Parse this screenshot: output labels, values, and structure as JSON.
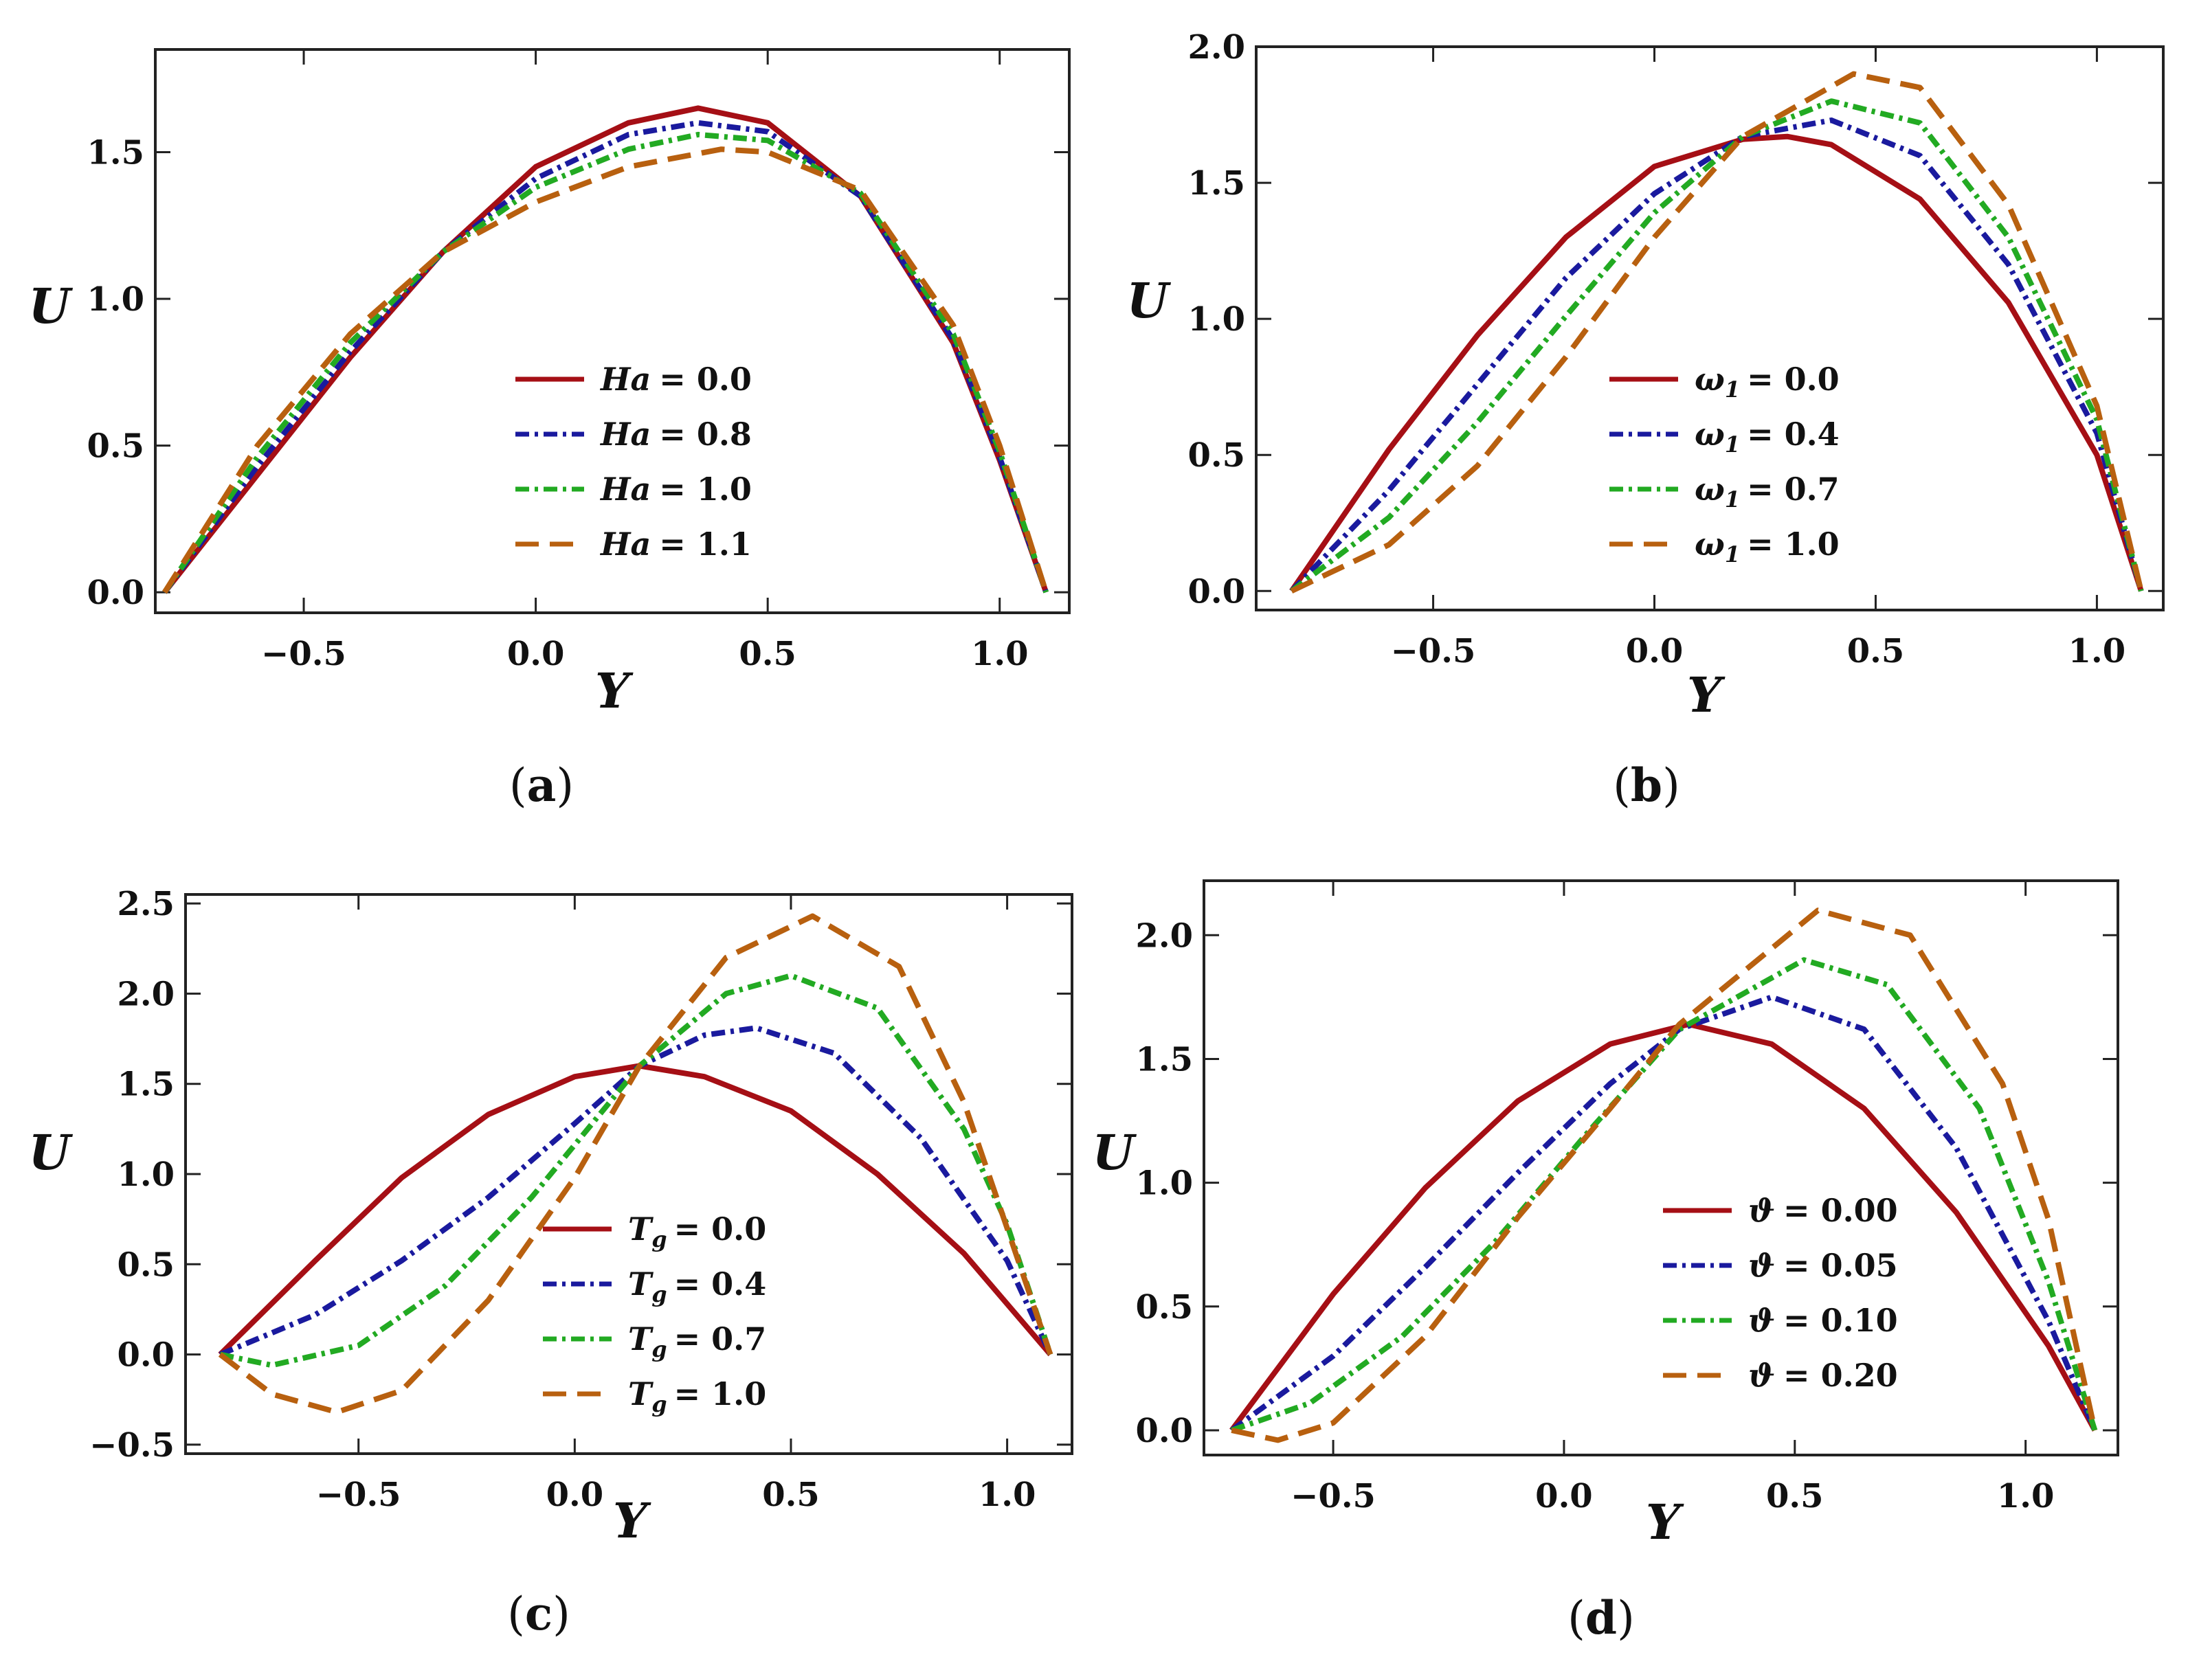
{
  "chart_data": [
    {
      "type": "line",
      "panel_label_parts": [
        "(",
        "a",
        ")"
      ],
      "xlabel": "Y",
      "ylabel": "U",
      "xlim": [
        -0.82,
        1.15
      ],
      "ylim": [
        -0.07,
        1.85
      ],
      "xticks": [
        -0.5,
        0.0,
        0.5,
        1.0
      ],
      "xtick_labels": [
        "−0.5",
        "0.0",
        "0.5",
        "1.0"
      ],
      "yticks": [
        0.0,
        0.5,
        1.0,
        1.5
      ],
      "ytick_labels": [
        "0.0",
        "0.5",
        "1.0",
        "1.5"
      ],
      "legend_position": "center-right",
      "series": [
        {
          "name": "Ha = 0.0",
          "label": {
            "sym": "Ha",
            "sub": "",
            "val": "= 0.0"
          },
          "color": "#a50f15",
          "style": "solid",
          "x": [
            -0.8,
            -0.6,
            -0.4,
            -0.2,
            0.0,
            0.2,
            0.35,
            0.5,
            0.7,
            0.9,
            1.0,
            1.1
          ],
          "y": [
            0.0,
            0.4,
            0.8,
            1.16,
            1.45,
            1.6,
            1.65,
            1.6,
            1.35,
            0.85,
            0.45,
            0.0
          ]
        },
        {
          "name": "Ha = 0.8",
          "label": {
            "sym": "Ha",
            "sub": "",
            "val": "= 0.8"
          },
          "color": "#1a1a9e",
          "style": "dashdot",
          "x": [
            -0.8,
            -0.6,
            -0.4,
            -0.2,
            0.0,
            0.2,
            0.35,
            0.5,
            0.7,
            0.9,
            1.0,
            1.1
          ],
          "y": [
            0.0,
            0.43,
            0.82,
            1.16,
            1.41,
            1.56,
            1.6,
            1.57,
            1.35,
            0.86,
            0.46,
            0.0
          ]
        },
        {
          "name": "Ha = 1.0",
          "label": {
            "sym": "Ha",
            "sub": "",
            "val": "= 1.0"
          },
          "color": "#22aa22",
          "style": "dashdot",
          "x": [
            -0.8,
            -0.6,
            -0.4,
            -0.2,
            0.0,
            0.2,
            0.35,
            0.5,
            0.7,
            0.9,
            1.0,
            1.1
          ],
          "y": [
            0.0,
            0.46,
            0.85,
            1.16,
            1.38,
            1.51,
            1.56,
            1.54,
            1.36,
            0.88,
            0.48,
            0.0
          ]
        },
        {
          "name": "Ha = 1.1",
          "label": {
            "sym": "Ha",
            "sub": "",
            "val": "= 1.1"
          },
          "color": "#b8600f",
          "style": "dashed",
          "x": [
            -0.8,
            -0.6,
            -0.4,
            -0.2,
            0.0,
            0.2,
            0.4,
            0.5,
            0.7,
            0.9,
            1.0,
            1.1
          ],
          "y": [
            0.0,
            0.5,
            0.88,
            1.16,
            1.33,
            1.45,
            1.51,
            1.5,
            1.37,
            0.91,
            0.5,
            0.0
          ]
        }
      ]
    },
    {
      "type": "line",
      "panel_label_parts": [
        "(",
        "b",
        ")"
      ],
      "xlabel": "Y",
      "ylabel": "U",
      "xlim": [
        -0.9,
        1.15
      ],
      "ylim": [
        -0.07,
        2.0
      ],
      "xticks": [
        -0.5,
        0.0,
        0.5,
        1.0
      ],
      "xtick_labels": [
        "−0.5",
        "0.0",
        "0.5",
        "1.0"
      ],
      "yticks": [
        0.0,
        0.5,
        1.0,
        1.5,
        2.0
      ],
      "ytick_labels": [
        "0.0",
        "0.5",
        "1.0",
        "1.5",
        "2.0"
      ],
      "legend_position": "center",
      "series": [
        {
          "name": "ω1 = 0.0",
          "label": {
            "sym": "ω",
            "sub": "1",
            "val": "= 0.0"
          },
          "color": "#a50f15",
          "style": "solid",
          "x": [
            -0.82,
            -0.6,
            -0.4,
            -0.2,
            0.0,
            0.2,
            0.3,
            0.4,
            0.6,
            0.8,
            1.0,
            1.1
          ],
          "y": [
            0.0,
            0.52,
            0.94,
            1.3,
            1.56,
            1.66,
            1.67,
            1.64,
            1.44,
            1.06,
            0.5,
            0.0
          ]
        },
        {
          "name": "ω1 = 0.4",
          "label": {
            "sym": "ω",
            "sub": "1",
            "val": "= 0.4"
          },
          "color": "#1a1a9e",
          "style": "dashdot",
          "x": [
            -0.82,
            -0.6,
            -0.4,
            -0.2,
            0.0,
            0.2,
            0.4,
            0.6,
            0.8,
            1.0,
            1.1
          ],
          "y": [
            0.0,
            0.37,
            0.76,
            1.15,
            1.46,
            1.67,
            1.73,
            1.6,
            1.2,
            0.58,
            0.0
          ]
        },
        {
          "name": "ω1 = 0.7",
          "label": {
            "sym": "ω",
            "sub": "1",
            "val": "= 0.7"
          },
          "color": "#22aa22",
          "style": "dashdot",
          "x": [
            -0.82,
            -0.6,
            -0.4,
            -0.2,
            0.0,
            0.2,
            0.4,
            0.6,
            0.8,
            1.0,
            1.1
          ],
          "y": [
            0.0,
            0.27,
            0.62,
            1.01,
            1.39,
            1.67,
            1.8,
            1.72,
            1.3,
            0.63,
            0.0
          ]
        },
        {
          "name": "ω1 = 1.0",
          "label": {
            "sym": "ω",
            "sub": "1",
            "val": "= 1.0"
          },
          "color": "#b8600f",
          "style": "dashed",
          "x": [
            -0.82,
            -0.6,
            -0.4,
            -0.2,
            0.0,
            0.2,
            0.45,
            0.6,
            0.8,
            1.0,
            1.1
          ],
          "y": [
            0.0,
            0.17,
            0.46,
            0.86,
            1.3,
            1.67,
            1.9,
            1.85,
            1.42,
            0.68,
            0.0
          ]
        }
      ]
    },
    {
      "type": "line",
      "panel_label_parts": [
        "(",
        "c",
        ")"
      ],
      "xlabel": "Y",
      "ylabel": "U",
      "xlim": [
        -0.9,
        1.15
      ],
      "ylim": [
        -0.55,
        2.55
      ],
      "xticks": [
        -0.5,
        0.0,
        0.5,
        1.0
      ],
      "xtick_labels": [
        "−0.5",
        "0.0",
        "0.5",
        "1.0"
      ],
      "yticks": [
        -0.5,
        0.0,
        0.5,
        1.0,
        1.5,
        2.0,
        2.5
      ],
      "ytick_labels": [
        "−0.5",
        "0.0",
        "0.5",
        "1.0",
        "1.5",
        "2.0",
        "2.5"
      ],
      "legend_position": "center",
      "series": [
        {
          "name": "Tg = 0.0",
          "label": {
            "sym": "T",
            "sub": "g",
            "val": "= 0.0"
          },
          "color": "#a50f15",
          "style": "solid",
          "x": [
            -0.82,
            -0.6,
            -0.4,
            -0.2,
            0.0,
            0.15,
            0.3,
            0.5,
            0.7,
            0.9,
            1.1
          ],
          "y": [
            0.0,
            0.52,
            0.98,
            1.33,
            1.54,
            1.6,
            1.54,
            1.35,
            1.0,
            0.56,
            0.0
          ]
        },
        {
          "name": "Tg = 0.4",
          "label": {
            "sym": "T",
            "sub": "g",
            "val": "= 0.4"
          },
          "color": "#1a1a9e",
          "style": "dashdot",
          "x": [
            -0.82,
            -0.6,
            -0.4,
            -0.2,
            0.0,
            0.15,
            0.3,
            0.42,
            0.6,
            0.8,
            1.0,
            1.1
          ],
          "y": [
            0.0,
            0.22,
            0.52,
            0.87,
            1.28,
            1.6,
            1.77,
            1.81,
            1.67,
            1.2,
            0.52,
            0.0
          ]
        },
        {
          "name": "Tg = 0.7",
          "label": {
            "sym": "T",
            "sub": "g",
            "val": "= 0.7"
          },
          "color": "#22aa22",
          "style": "dashdot",
          "x": [
            -0.82,
            -0.7,
            -0.5,
            -0.3,
            -0.1,
            0.15,
            0.35,
            0.5,
            0.7,
            0.9,
            1.0,
            1.1
          ],
          "y": [
            0.0,
            -0.06,
            0.05,
            0.38,
            0.87,
            1.6,
            2.0,
            2.1,
            1.92,
            1.25,
            0.72,
            0.0
          ]
        },
        {
          "name": "Tg = 1.0",
          "label": {
            "sym": "T",
            "sub": "g",
            "val": "= 1.0"
          },
          "color": "#b8600f",
          "style": "dashed",
          "x": [
            -0.82,
            -0.7,
            -0.55,
            -0.4,
            -0.2,
            0.0,
            0.15,
            0.35,
            0.55,
            0.75,
            0.9,
            1.1
          ],
          "y": [
            0.0,
            -0.22,
            -0.32,
            -0.2,
            0.3,
            0.98,
            1.6,
            2.2,
            2.43,
            2.15,
            1.4,
            0.0
          ]
        }
      ]
    },
    {
      "type": "line",
      "panel_label_parts": [
        "(",
        "d",
        ")"
      ],
      "xlabel": "Y",
      "ylabel": "U",
      "xlim": [
        -0.78,
        1.2
      ],
      "ylim": [
        -0.1,
        2.22
      ],
      "xticks": [
        -0.5,
        0.0,
        0.5,
        1.0
      ],
      "xtick_labels": [
        "−0.5",
        "0.0",
        "0.5",
        "1.0"
      ],
      "yticks": [
        0.0,
        0.5,
        1.0,
        1.5,
        2.0
      ],
      "ytick_labels": [
        "0.0",
        "0.5",
        "1.0",
        "1.5",
        "2.0"
      ],
      "legend_position": "center",
      "series": [
        {
          "name": "ϑ = 0.00",
          "label": {
            "sym": "ϑ",
            "sub": "",
            "val": "= 0.00"
          },
          "color": "#a50f15",
          "style": "solid",
          "x": [
            -0.72,
            -0.5,
            -0.3,
            -0.1,
            0.1,
            0.27,
            0.45,
            0.65,
            0.85,
            1.05,
            1.15
          ],
          "y": [
            0.0,
            0.55,
            0.98,
            1.33,
            1.56,
            1.64,
            1.56,
            1.3,
            0.88,
            0.34,
            0.0
          ]
        },
        {
          "name": "ϑ = 0.05",
          "label": {
            "sym": "ϑ",
            "sub": "",
            "val": "= 0.05"
          },
          "color": "#1a1a9e",
          "style": "dashdot",
          "x": [
            -0.72,
            -0.5,
            -0.3,
            -0.1,
            0.1,
            0.25,
            0.45,
            0.65,
            0.85,
            1.05,
            1.15
          ],
          "y": [
            0.0,
            0.3,
            0.66,
            1.04,
            1.4,
            1.62,
            1.75,
            1.62,
            1.14,
            0.44,
            0.0
          ]
        },
        {
          "name": "ϑ = 0.10",
          "label": {
            "sym": "ϑ",
            "sub": "",
            "val": "= 0.10"
          },
          "color": "#22aa22",
          "style": "dashdot",
          "x": [
            -0.72,
            -0.55,
            -0.35,
            -0.15,
            0.05,
            0.25,
            0.52,
            0.7,
            0.9,
            1.05,
            1.15
          ],
          "y": [
            0.0,
            0.11,
            0.38,
            0.76,
            1.2,
            1.62,
            1.9,
            1.8,
            1.3,
            0.6,
            0.0
          ]
        },
        {
          "name": "ϑ = 0.20",
          "label": {
            "sym": "ϑ",
            "sub": "",
            "val": "= 0.20"
          },
          "color": "#b8600f",
          "style": "dashed",
          "x": [
            -0.72,
            -0.62,
            -0.5,
            -0.3,
            -0.1,
            0.1,
            0.25,
            0.55,
            0.75,
            0.95,
            1.05,
            1.15
          ],
          "y": [
            0.0,
            -0.04,
            0.03,
            0.38,
            0.86,
            1.3,
            1.64,
            2.1,
            2.0,
            1.4,
            0.85,
            0.0
          ]
        }
      ]
    }
  ]
}
